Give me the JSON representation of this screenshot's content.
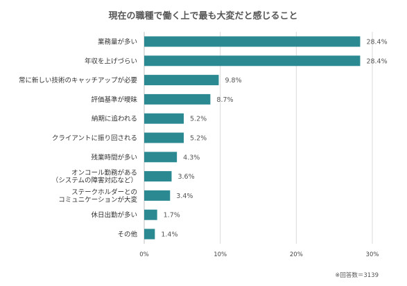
{
  "chart_data": {
    "type": "bar",
    "orientation": "horizontal",
    "title": "現在の職種で働く上で最も大変だと感じること",
    "categories": [
      [
        "業務量が多い"
      ],
      [
        "年収を上げづらい"
      ],
      [
        "常に新しい技術のキャッチアップが必要"
      ],
      [
        "評価基準が曖昧"
      ],
      [
        "納期に追われる"
      ],
      [
        "クライアントに振り回される"
      ],
      [
        "残業時間が多い"
      ],
      [
        "オンコール勤務がある",
        "（システムの障害対応など）"
      ],
      [
        "ステークホルダーとの",
        "コミュニケーションが大変"
      ],
      [
        "休日出勤が多い"
      ],
      [
        "その他"
      ]
    ],
    "values": [
      28.4,
      28.4,
      9.8,
      8.7,
      5.2,
      5.2,
      4.3,
      3.6,
      3.4,
      1.7,
      1.4
    ],
    "value_labels": [
      "28.4%",
      "28.4%",
      "9.8%",
      "8.7%",
      "5.2%",
      "5.2%",
      "4.3%",
      "3.6%",
      "3.4%",
      "1.7%",
      "1.4%"
    ],
    "xlim": [
      0,
      30
    ],
    "x_ticks": [
      0,
      10,
      20,
      30
    ],
    "x_tick_labels": [
      "0%",
      "10%",
      "20%",
      "30%"
    ],
    "grid": true,
    "bar_color": "#2b8a91",
    "grid_color": "#d9d9d9",
    "note": "※回答数＝3139"
  }
}
